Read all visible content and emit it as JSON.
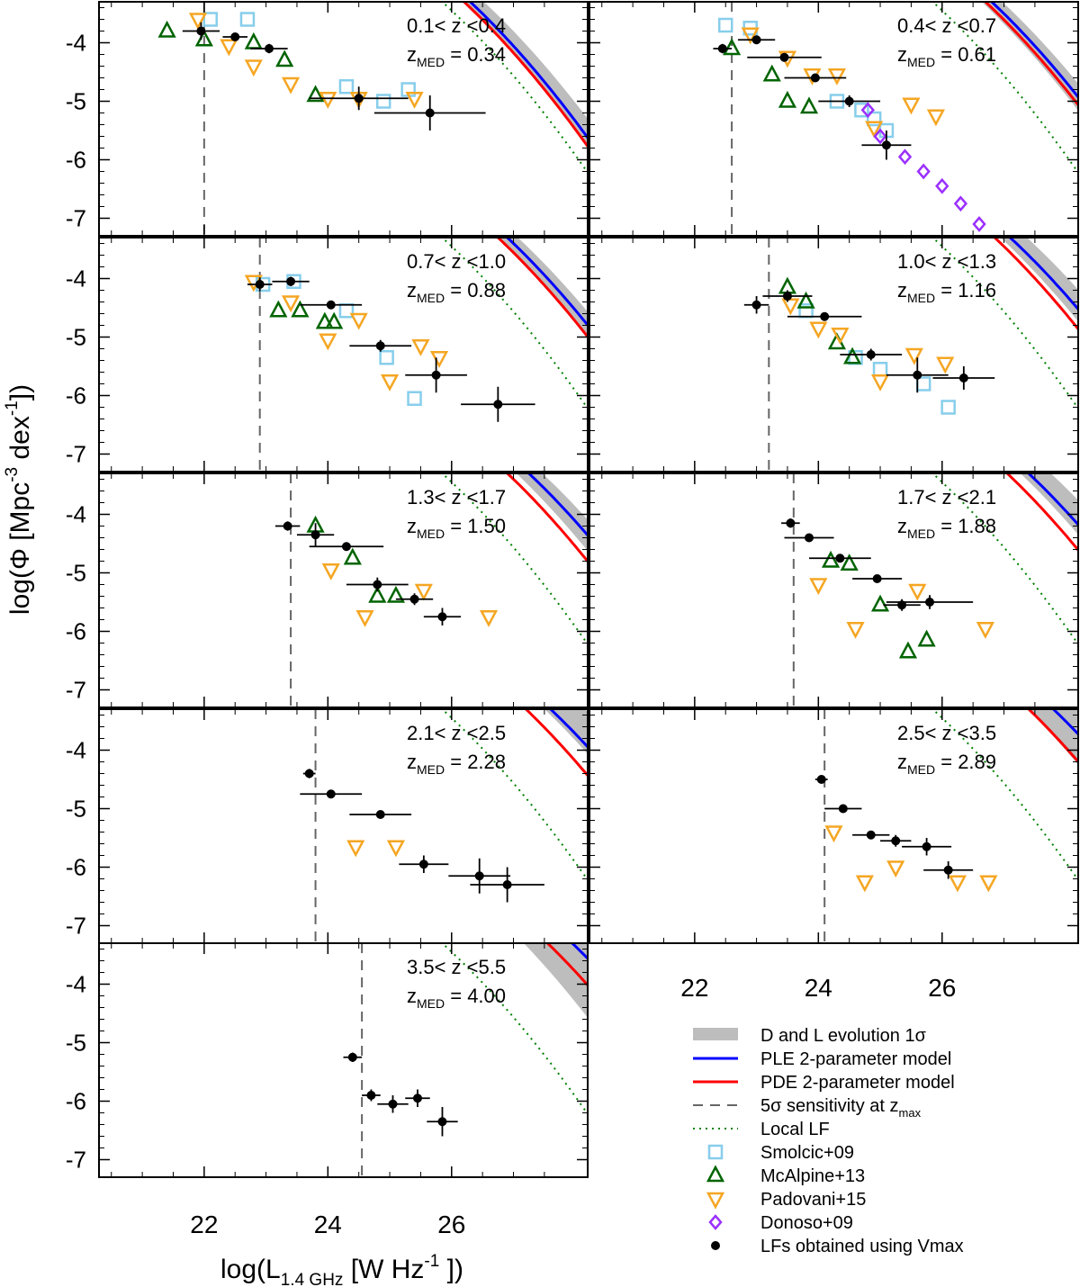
{
  "figure": {
    "xlabel_main": "log(L",
    "xlabel_sub": "1.4 GHz",
    "xlabel_tail": " [W Hz",
    "xlabel_sup": "-1",
    "xlabel_end": " ])",
    "ylabel_main": "log(Φ [Mpc",
    "ylabel_sup": "-3",
    "ylabel_mid": " dex",
    "ylabel_sup2": "-1",
    "ylabel_end": "])",
    "x_tick_labels": [
      "22",
      "24",
      "26"
    ],
    "y_tick_labels": [
      "-4",
      "-5",
      "-6",
      "-7"
    ],
    "zmed_prefix": "z",
    "zmed_sub": "MED",
    "colors": {
      "band": "#bdbdbd",
      "ple": "#0000ff",
      "pde": "#ff0000",
      "sensitivity": "#666666",
      "local": "#008000",
      "smolcic": "#87ceeb",
      "mcalpine": "#006400",
      "padovani": "#f5a623",
      "donoso": "#9b30ff",
      "vmax": "#000000"
    }
  },
  "legend": {
    "items": [
      {
        "label": "D and L evolution 1σ",
        "style": "band"
      },
      {
        "label": "PLE 2-parameter model",
        "style": "ple"
      },
      {
        "label": "PDE 2-parameter model",
        "style": "pde"
      },
      {
        "label": "5σ sensitivity at z",
        "sub": "max",
        "style": "sensitivity"
      },
      {
        "label": "Local LF",
        "style": "local"
      },
      {
        "label": "Smolcic+09",
        "style": "smolcic"
      },
      {
        "label": "McAlpine+13",
        "style": "mcalpine"
      },
      {
        "label": "Padovani+15",
        "style": "padovani"
      },
      {
        "label": "Donoso+09",
        "style": "donoso"
      },
      {
        "label": "LFs obtained using Vmax",
        "style": "vmax"
      }
    ]
  },
  "chart_data": [
    {
      "type": "scatter",
      "bin_label": "0.1< z <0.4",
      "zmed": "0.34",
      "xlim": [
        20.3,
        28.2
      ],
      "ylim": [
        -7.3,
        -3.3
      ],
      "sensitivity_x": 22.0,
      "ple": {
        "a": -1.6,
        "b": 23.9,
        "c": -0.42
      },
      "pde": {
        "a": -1.6,
        "b": 23.8,
        "c": -0.42
      },
      "band": {
        "mid_a": -1.6,
        "mid_b": 23.95,
        "mid_c": -0.42,
        "w0": 0.05,
        "w1": 0.08
      },
      "local": {
        "a": -1.75,
        "b": 23.6,
        "c": -0.42
      },
      "vmax": [
        [
          21.95,
          -3.8,
          0.3,
          0.15
        ],
        [
          22.5,
          -3.9,
          0.2,
          0.05
        ],
        [
          23.05,
          -4.1,
          0.3,
          0.08
        ],
        [
          24.5,
          -4.95,
          0.8,
          0.2
        ],
        [
          25.65,
          -5.2,
          0.9,
          0.3
        ]
      ],
      "smolcic": [
        [
          22.1,
          -3.6
        ],
        [
          22.7,
          -3.6
        ],
        [
          24.3,
          -4.75
        ],
        [
          24.9,
          -5.0
        ],
        [
          25.3,
          -4.8
        ]
      ],
      "mcalpine": [
        [
          21.4,
          -3.8
        ],
        [
          22.0,
          -3.95
        ],
        [
          22.8,
          -4.0
        ],
        [
          23.3,
          -4.3
        ],
        [
          23.8,
          -4.9
        ]
      ],
      "padovani": [
        [
          21.9,
          -3.6
        ],
        [
          22.4,
          -4.05
        ],
        [
          22.8,
          -4.4
        ],
        [
          23.4,
          -4.7
        ],
        [
          24.0,
          -4.95
        ],
        [
          24.5,
          -4.95
        ],
        [
          25.4,
          -4.95
        ]
      ]
    },
    {
      "type": "scatter",
      "bin_label": "0.4< z <0.7",
      "zmed": "0.61",
      "xlim": [
        20.3,
        28.2
      ],
      "ylim": [
        -7.3,
        -3.3
      ],
      "sensitivity_x": 22.6,
      "ple": {
        "a": -1.6,
        "b": 24.4,
        "c": -0.42
      },
      "pde": {
        "a": -1.6,
        "b": 24.3,
        "c": -0.42
      },
      "band": {
        "mid_a": -1.6,
        "mid_b": 24.4,
        "mid_c": -0.42,
        "w0": 0.05,
        "w1": 0.08
      },
      "local": {
        "a": -1.75,
        "b": 23.6,
        "c": -0.42
      },
      "vmax": [
        [
          22.45,
          -4.1,
          0.15,
          0.08
        ],
        [
          23.0,
          -3.95,
          0.3,
          0.06
        ],
        [
          23.45,
          -4.25,
          0.6,
          0.06
        ],
        [
          23.95,
          -4.6,
          0.5,
          0.05
        ],
        [
          24.5,
          -5.0,
          0.5,
          0.1
        ],
        [
          25.1,
          -5.75,
          0.4,
          0.25
        ]
      ],
      "smolcic": [
        [
          22.5,
          -3.7
        ],
        [
          22.9,
          -3.75
        ],
        [
          24.3,
          -5.0
        ],
        [
          24.7,
          -5.15
        ],
        [
          24.9,
          -5.3
        ],
        [
          25.1,
          -5.5
        ]
      ],
      "mcalpine": [
        [
          22.6,
          -4.1
        ],
        [
          23.25,
          -4.55
        ],
        [
          23.5,
          -5.0
        ],
        [
          23.85,
          -5.1
        ]
      ],
      "padovani": [
        [
          22.9,
          -3.85
        ],
        [
          23.5,
          -4.25
        ],
        [
          23.9,
          -4.55
        ],
        [
          24.3,
          -4.55
        ],
        [
          24.9,
          -5.45
        ],
        [
          25.5,
          -5.05
        ],
        [
          25.9,
          -5.25
        ]
      ],
      "donoso": [
        [
          24.8,
          -5.15
        ],
        [
          25.0,
          -5.6
        ],
        [
          25.4,
          -5.95
        ],
        [
          25.7,
          -6.2
        ],
        [
          26.0,
          -6.45
        ],
        [
          26.3,
          -6.75
        ],
        [
          26.6,
          -7.1
        ]
      ]
    },
    {
      "type": "scatter",
      "bin_label": "0.7< z <1.0",
      "zmed": "0.88",
      "xlim": [
        20.3,
        28.2
      ],
      "ylim": [
        -7.3,
        -3.3
      ],
      "sensitivity_x": 22.9,
      "ple": {
        "a": -1.6,
        "b": 24.5,
        "c": -0.42
      },
      "pde": {
        "a": -1.6,
        "b": 24.35,
        "c": -0.42
      },
      "band": {
        "mid_a": -1.6,
        "mid_b": 24.5,
        "mid_c": -0.42,
        "w0": 0.05,
        "w1": 0.08
      },
      "local": {
        "a": -1.75,
        "b": 23.6,
        "c": -0.42
      },
      "vmax": [
        [
          22.9,
          -4.1,
          0.2,
          0.12
        ],
        [
          23.4,
          -4.05,
          0.3,
          0.08
        ],
        [
          24.05,
          -4.45,
          0.5,
          0.06
        ],
        [
          24.85,
          -5.15,
          0.5,
          0.1
        ],
        [
          25.75,
          -5.65,
          0.5,
          0.3
        ],
        [
          26.75,
          -6.15,
          0.6,
          0.3
        ]
      ],
      "smolcic": [
        [
          22.95,
          -4.1
        ],
        [
          23.45,
          -4.05
        ],
        [
          24.3,
          -4.55
        ],
        [
          24.95,
          -5.35
        ],
        [
          25.4,
          -6.05
        ]
      ],
      "mcalpine": [
        [
          23.2,
          -4.55
        ],
        [
          23.55,
          -4.55
        ],
        [
          23.95,
          -4.75
        ],
        [
          24.1,
          -4.75
        ]
      ],
      "padovani": [
        [
          22.8,
          -4.05
        ],
        [
          23.4,
          -4.4
        ],
        [
          24.0,
          -5.05
        ],
        [
          24.5,
          -4.7
        ],
        [
          25.0,
          -5.75
        ],
        [
          25.5,
          -5.15
        ],
        [
          25.8,
          -5.35
        ]
      ]
    },
    {
      "type": "scatter",
      "bin_label": "1.0< z <1.3",
      "zmed": "1.16",
      "xlim": [
        20.3,
        28.2
      ],
      "ylim": [
        -7.3,
        -3.3
      ],
      "sensitivity_x": 23.2,
      "ple": {
        "a": -1.6,
        "b": 24.6,
        "c": -0.38
      },
      "pde": {
        "a": -1.6,
        "b": 24.45,
        "c": -0.42
      },
      "band": {
        "mid_a": -1.6,
        "mid_b": 24.65,
        "mid_c": -0.38,
        "w0": 0.06,
        "w1": 0.1
      },
      "local": {
        "a": -1.75,
        "b": 23.6,
        "c": -0.42
      },
      "vmax": [
        [
          23.0,
          -4.45,
          0.2,
          0.15
        ],
        [
          23.5,
          -4.3,
          0.4,
          0.1
        ],
        [
          24.1,
          -4.65,
          0.6,
          0.06
        ],
        [
          24.85,
          -5.3,
          0.5,
          0.1
        ],
        [
          25.6,
          -5.65,
          0.5,
          0.3
        ],
        [
          26.35,
          -5.7,
          0.5,
          0.2
        ]
      ],
      "smolcic": [
        [
          23.8,
          -4.55
        ],
        [
          24.6,
          -5.35
        ],
        [
          25.0,
          -5.55
        ],
        [
          25.7,
          -5.8
        ],
        [
          26.1,
          -6.2
        ]
      ],
      "mcalpine": [
        [
          23.5,
          -4.15
        ],
        [
          23.8,
          -4.4
        ],
        [
          24.3,
          -5.1
        ],
        [
          24.55,
          -5.35
        ]
      ],
      "padovani": [
        [
          23.55,
          -4.45
        ],
        [
          24.0,
          -4.85
        ],
        [
          24.35,
          -4.95
        ],
        [
          25.0,
          -5.75
        ],
        [
          25.55,
          -5.3
        ],
        [
          26.05,
          -5.45
        ]
      ]
    },
    {
      "type": "scatter",
      "bin_label": "1.3< z <1.7",
      "zmed": "1.50",
      "xlim": [
        20.3,
        28.2
      ],
      "ylim": [
        -7.3,
        -3.3
      ],
      "sensitivity_x": 23.4,
      "ple": {
        "a": -1.55,
        "b": 24.75,
        "c": -0.4
      },
      "pde": {
        "a": -1.6,
        "b": 24.55,
        "c": -0.44
      },
      "band": {
        "mid_a": -1.55,
        "mid_b": 24.75,
        "mid_c": -0.4,
        "w0": 0.06,
        "w1": 0.1
      },
      "local": {
        "a": -1.75,
        "b": 23.6,
        "c": -0.42
      },
      "vmax": [
        [
          23.35,
          -4.2,
          0.2,
          0.08
        ],
        [
          23.8,
          -4.35,
          0.3,
          0.2
        ],
        [
          24.3,
          -4.55,
          0.6,
          0.05
        ],
        [
          24.8,
          -5.2,
          0.5,
          0.12
        ],
        [
          25.4,
          -5.45,
          0.3,
          0.1
        ],
        [
          25.85,
          -5.75,
          0.3,
          0.15
        ]
      ],
      "mcalpine": [
        [
          23.8,
          -4.2
        ],
        [
          24.4,
          -4.75
        ],
        [
          24.8,
          -5.4
        ],
        [
          25.1,
          -5.4
        ]
      ],
      "padovani": [
        [
          24.05,
          -4.95
        ],
        [
          24.6,
          -5.75
        ],
        [
          25.55,
          -5.3
        ],
        [
          26.6,
          -5.75
        ]
      ]
    },
    {
      "type": "scatter",
      "bin_label": "1.7< z <2.1",
      "zmed": "1.88",
      "xlim": [
        20.3,
        28.2
      ],
      "ylim": [
        -7.3,
        -3.3
      ],
      "sensitivity_x": 23.6,
      "ple": {
        "a": -1.55,
        "b": 24.9,
        "c": -0.4
      },
      "pde": {
        "a": -1.6,
        "b": 24.7,
        "c": -0.44
      },
      "band": {
        "mid_a": -1.55,
        "mid_b": 24.95,
        "mid_c": -0.38,
        "w0": 0.06,
        "w1": 0.12
      },
      "local": {
        "a": -1.75,
        "b": 23.6,
        "c": -0.42
      },
      "vmax": [
        [
          23.55,
          -4.15,
          0.15,
          0.08
        ],
        [
          23.85,
          -4.4,
          0.4,
          0.05
        ],
        [
          24.35,
          -4.75,
          0.5,
          0.05
        ],
        [
          24.95,
          -5.1,
          0.4,
          0.06
        ],
        [
          25.35,
          -5.55,
          0.3,
          0.1
        ],
        [
          25.8,
          -5.5,
          0.7,
          0.12
        ]
      ],
      "mcalpine": [
        [
          24.2,
          -4.8
        ],
        [
          24.5,
          -4.85
        ],
        [
          25.0,
          -5.55
        ],
        [
          25.45,
          -6.35
        ],
        [
          25.75,
          -6.15
        ]
      ],
      "padovani": [
        [
          24.0,
          -5.2
        ],
        [
          24.6,
          -5.95
        ],
        [
          25.6,
          -5.3
        ],
        [
          26.7,
          -5.95
        ]
      ]
    },
    {
      "type": "scatter",
      "bin_label": "2.1< z <2.5",
      "zmed": "2.28",
      "xlim": [
        20.3,
        28.2
      ],
      "ylim": [
        -7.3,
        -3.3
      ],
      "sensitivity_x": 23.8,
      "ple": {
        "a": -1.5,
        "b": 25.0,
        "c": -0.38
      },
      "pde": {
        "a": -1.55,
        "b": 24.8,
        "c": -0.44
      },
      "band": {
        "mid_a": -1.5,
        "mid_b": 25.1,
        "mid_c": -0.34,
        "w0": 0.06,
        "w1": 0.16
      },
      "local": {
        "a": -1.75,
        "b": 23.6,
        "c": -0.42
      },
      "vmax": [
        [
          23.7,
          -4.4,
          0.1,
          0.08
        ],
        [
          24.05,
          -4.75,
          0.5,
          0.05
        ],
        [
          24.85,
          -5.1,
          0.5,
          0.05
        ],
        [
          25.55,
          -5.95,
          0.4,
          0.15
        ],
        [
          26.45,
          -6.15,
          0.5,
          0.3
        ],
        [
          26.9,
          -6.3,
          0.6,
          0.3
        ]
      ],
      "padovani": [
        [
          24.45,
          -5.65
        ],
        [
          25.1,
          -5.65
        ]
      ]
    },
    {
      "type": "scatter",
      "bin_label": "2.5< z <3.5",
      "zmed": "2.89",
      "xlim": [
        20.3,
        28.2
      ],
      "ylim": [
        -7.3,
        -3.3
      ],
      "sensitivity_x": 24.1,
      "ple": {
        "a": -1.45,
        "b": 25.15,
        "c": -0.38
      },
      "pde": {
        "a": -1.5,
        "b": 24.95,
        "c": -0.44
      },
      "band": {
        "mid_a": -1.45,
        "mid_b": 25.2,
        "mid_c": -0.33,
        "w0": 0.1,
        "w1": 0.35
      },
      "local": {
        "a": -1.75,
        "b": 23.6,
        "c": -0.42
      },
      "vmax": [
        [
          24.05,
          -4.5,
          0.1,
          0.06
        ],
        [
          24.4,
          -5.0,
          0.3,
          0.04
        ],
        [
          24.85,
          -5.45,
          0.3,
          0.06
        ],
        [
          25.25,
          -5.55,
          0.25,
          0.1
        ],
        [
          25.75,
          -5.65,
          0.4,
          0.15
        ],
        [
          26.1,
          -6.05,
          0.4,
          0.15
        ]
      ],
      "padovani": [
        [
          24.25,
          -5.4
        ],
        [
          24.75,
          -6.25
        ],
        [
          25.25,
          -6.0
        ],
        [
          26.25,
          -6.25
        ],
        [
          26.75,
          -6.25
        ]
      ]
    },
    {
      "type": "scatter",
      "bin_label": "3.5< z <5.5",
      "zmed": "4.00",
      "xlim": [
        20.3,
        28.2
      ],
      "ylim": [
        -7.3,
        -3.3
      ],
      "sensitivity_x": 24.55,
      "ple": {
        "a": -1.45,
        "b": 25.3,
        "c": -0.38
      },
      "pde": {
        "a": -1.5,
        "b": 25.1,
        "c": -0.44
      },
      "band": {
        "mid_a": -1.5,
        "mid_b": 25.3,
        "mid_c": -0.33,
        "w0": 0.15,
        "w1": 0.55
      },
      "local": {
        "a": -1.75,
        "b": 23.6,
        "c": -0.42
      },
      "vmax": [
        [
          24.4,
          -5.25,
          0.15,
          0.08
        ],
        [
          24.7,
          -5.9,
          0.15,
          0.1
        ],
        [
          25.05,
          -6.05,
          0.25,
          0.15
        ],
        [
          25.45,
          -5.95,
          0.2,
          0.15
        ],
        [
          25.85,
          -6.35,
          0.25,
          0.25
        ]
      ]
    }
  ]
}
